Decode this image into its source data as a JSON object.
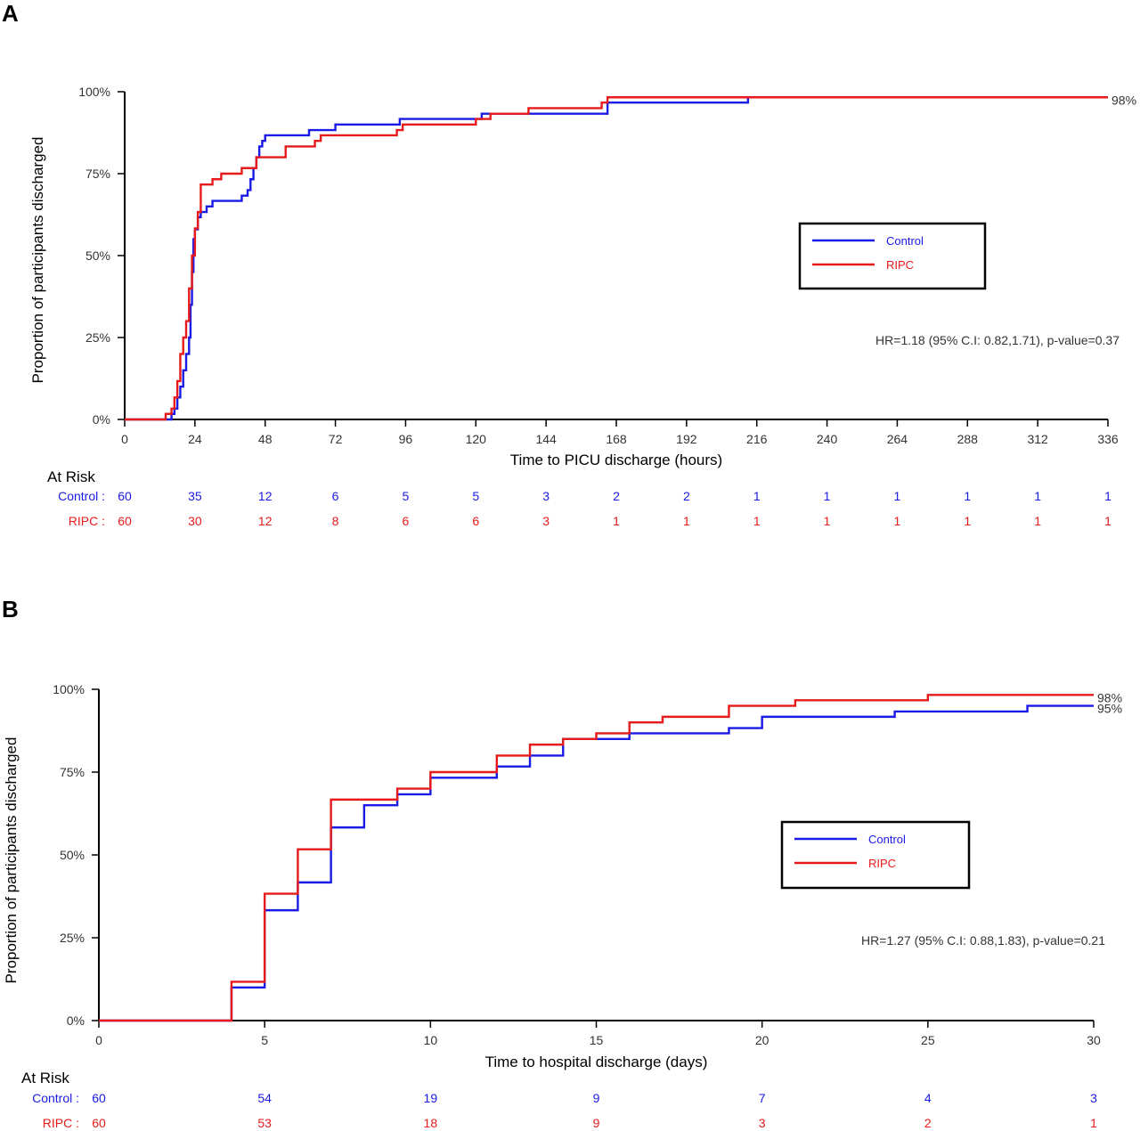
{
  "colors": {
    "control": "#1a1ae6",
    "ripc": "#e61a1a",
    "axis": "#000000"
  },
  "chart_data": [
    {
      "type": "line",
      "panel": "A",
      "xlabel": "Time to PICU discharge (hours)",
      "ylabel": "Proportion of participants discharged",
      "xlim": [
        0,
        336
      ],
      "ylim": [
        0,
        100
      ],
      "x_ticks": [
        "0",
        "24",
        "48",
        "72",
        "96",
        "120",
        "144",
        "168",
        "192",
        "216",
        "240",
        "264",
        "288",
        "312",
        "336"
      ],
      "y_ticks": [
        "0%",
        "25%",
        "50%",
        "75%",
        "100%"
      ],
      "legend": {
        "position": "right",
        "entries": [
          "Control",
          "RIPC"
        ]
      },
      "annotation": "HR=1.18 (95% C.I: 0.82,1.71),  p-value=0.37",
      "end_labels": [
        {
          "series": "RIPC",
          "text": "98%",
          "y": 98.3
        }
      ],
      "series": [
        {
          "name": "Control",
          "color_key": "control",
          "x": [
            0,
            16,
            17,
            18,
            19,
            20,
            21,
            22,
            22.5,
            23,
            23.5,
            24,
            25,
            26,
            28,
            30,
            32,
            40,
            42,
            43,
            44,
            45,
            46,
            47,
            48,
            49,
            50,
            63,
            72,
            94,
            122,
            165,
            213,
            336
          ],
          "y": [
            0,
            1.7,
            3.3,
            6.7,
            10,
            15,
            20,
            25,
            35,
            45,
            55,
            58,
            61.7,
            63.3,
            65,
            66.7,
            66.7,
            68.3,
            70,
            73.3,
            76.7,
            80,
            83.3,
            85,
            86.7,
            86.7,
            86.7,
            88.3,
            90,
            91.7,
            93.3,
            96.7,
            98.3,
            98.3
          ]
        },
        {
          "name": "RIPC",
          "color_key": "ripc",
          "x": [
            0,
            14,
            16,
            17,
            18,
            19,
            20,
            21,
            22,
            23,
            24,
            25,
            26,
            27,
            30,
            33,
            40,
            45,
            48,
            55,
            65,
            67,
            93,
            95,
            120,
            125,
            138,
            163,
            165,
            336
          ],
          "y": [
            0,
            1.7,
            3.3,
            6.7,
            11.7,
            20,
            25,
            30,
            40,
            50,
            58.3,
            63.3,
            71.7,
            71.7,
            73.3,
            75,
            76.7,
            80,
            80,
            83.3,
            85,
            86.7,
            88.3,
            90,
            91.7,
            93.3,
            95,
            96.7,
            98.3,
            98.3
          ]
        }
      ],
      "at_risk": {
        "title": "At Risk",
        "x": [
          0,
          24,
          48,
          72,
          96,
          120,
          144,
          168,
          192,
          216,
          240,
          264,
          288,
          312,
          336
        ],
        "rows": [
          {
            "label": "Control :",
            "color_key": "control",
            "values": [
              "60",
              "35",
              "12",
              "6",
              "5",
              "5",
              "3",
              "2",
              "2",
              "1",
              "1",
              "1",
              "1",
              "1",
              "1"
            ]
          },
          {
            "label": "RIPC :",
            "color_key": "ripc",
            "values": [
              "60",
              "30",
              "12",
              "8",
              "6",
              "6",
              "3",
              "1",
              "1",
              "1",
              "1",
              "1",
              "1",
              "1",
              "1"
            ]
          }
        ]
      }
    },
    {
      "type": "line",
      "panel": "B",
      "xlabel": "Time to hospital discharge (days)",
      "ylabel": "Proportion of participants discharged",
      "xlim": [
        0,
        30
      ],
      "ylim": [
        0,
        100
      ],
      "x_ticks": [
        "0",
        "5",
        "10",
        "15",
        "20",
        "25",
        "30"
      ],
      "y_ticks": [
        "0%",
        "25%",
        "50%",
        "75%",
        "100%"
      ],
      "legend": {
        "position": "right",
        "entries": [
          "Control",
          "RIPC"
        ]
      },
      "annotation": "HR=1.27 (95% C.I: 0.88,1.83),  p-value=0.21",
      "end_labels": [
        {
          "series": "RIPC",
          "text": "98%",
          "y": 98.3
        },
        {
          "series": "Control",
          "text": "95%",
          "y": 95
        }
      ],
      "series": [
        {
          "name": "Control",
          "color_key": "control",
          "x": [
            0,
            4,
            5,
            6,
            7,
            8,
            9,
            10,
            12,
            13,
            14,
            16,
            19,
            20,
            24,
            28,
            30
          ],
          "y": [
            0,
            10,
            33.3,
            41.7,
            58.3,
            65,
            68.3,
            73.3,
            76.7,
            80,
            85,
            86.7,
            88.3,
            91.7,
            93.3,
            95,
            95
          ]
        },
        {
          "name": "RIPC",
          "color_key": "ripc",
          "x": [
            0,
            4,
            5,
            6,
            7,
            9,
            10,
            12,
            13,
            14,
            15,
            16,
            17,
            19,
            21,
            25,
            30
          ],
          "y": [
            0,
            11.7,
            38.3,
            51.7,
            66.7,
            70,
            75,
            80,
            83.3,
            85,
            86.7,
            90,
            91.7,
            95,
            96.7,
            98.3,
            98.3
          ]
        }
      ],
      "at_risk": {
        "title": "At Risk",
        "x": [
          0,
          5,
          10,
          15,
          20,
          25,
          30
        ],
        "rows": [
          {
            "label": "Control :",
            "color_key": "control",
            "values": [
              "60",
              "54",
              "19",
              "9",
              "7",
              "4",
              "3"
            ]
          },
          {
            "label": "RIPC :",
            "color_key": "ripc",
            "values": [
              "60",
              "53",
              "18",
              "9",
              "3",
              "2",
              "1"
            ]
          }
        ]
      }
    }
  ]
}
